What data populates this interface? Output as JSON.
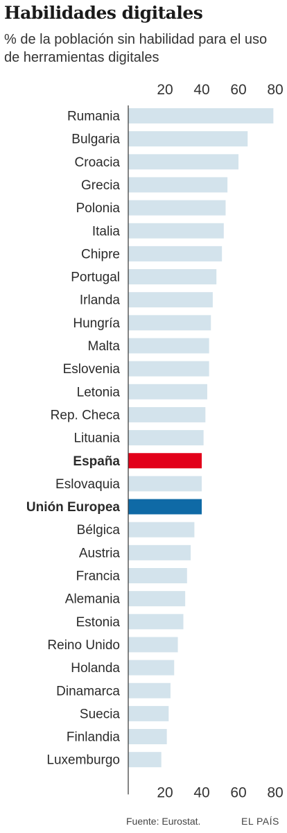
{
  "title": "Habilidades digitales",
  "subtitle": "% de la población sin habilidad para el uso de herramientas digitales",
  "source": "Fuente: Eurostat.",
  "brand": "EL PAÍS",
  "colors": {
    "bar": "#d3e3ec",
    "spain": "#e2001a",
    "eu": "#0f6aa6",
    "axis": "#333333"
  },
  "chart_data": {
    "type": "bar",
    "orientation": "horizontal",
    "title": "Habilidades digitales",
    "subtitle": "% de la población sin habilidad para el uso de herramientas digitales",
    "xlim": [
      0,
      80
    ],
    "xticks": [
      20,
      40,
      60,
      80
    ],
    "grid": false,
    "categories": [
      "Rumania",
      "Bulgaria",
      "Croacia",
      "Grecia",
      "Polonia",
      "Italia",
      "Chipre",
      "Portugal",
      "Irlanda",
      "Hungría",
      "Malta",
      "Eslovenia",
      "Letonia",
      "Rep. Checa",
      "Lituania",
      "España",
      "Eslovaquia",
      "Unión Europea",
      "Bélgica",
      "Austria",
      "Francia",
      "Alemania",
      "Estonia",
      "Reino Unido",
      "Holanda",
      "Dinamarca",
      "Suecia",
      "Finlandia",
      "Luxemburgo"
    ],
    "values": [
      79,
      65,
      60,
      54,
      53,
      52,
      51,
      48,
      46,
      45,
      44,
      44,
      43,
      42,
      41,
      40,
      40,
      40,
      36,
      34,
      32,
      31,
      30,
      27,
      25,
      23,
      22,
      21,
      18
    ],
    "highlight": {
      "España": "spain",
      "Unión Europea": "eu"
    }
  }
}
